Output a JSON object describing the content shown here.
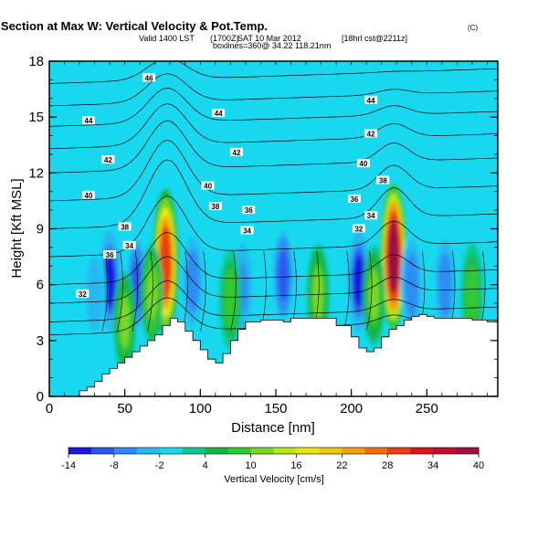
{
  "header": {
    "title": "Wind-Parallel Section at Max W: Vertical Velocity & Pot.Temp.",
    "copyright": "(C)",
    "valid_main": "Valid 1400 LST",
    "valid_utc": "(1700Z)",
    "valid_date": "SAT 10 Mar 2012",
    "model": "[18hrl cst@2211z]",
    "location": "boxlines=360@ 34.22 118.21nm"
  },
  "chart_data": {
    "type": "heatmap",
    "title": "Wind-Parallel Section at Max W: Vertical Velocity & Pot.Temp.",
    "xlabel": "Distance [nm]",
    "ylabel": "Height [Kft MSL]",
    "xlim": [
      0,
      297
    ],
    "ylim": [
      0,
      18
    ],
    "x_ticks": [
      "0",
      "50",
      "100",
      "150",
      "200",
      "250"
    ],
    "y_ticks": [
      "0",
      "3",
      "6",
      "9",
      "12",
      "15",
      "18"
    ],
    "colorbar": {
      "label": "Vertical Velocity [cm/s]",
      "tick_labels": [
        "-14",
        "-8",
        "-2",
        "4",
        "10",
        "16",
        "22",
        "28",
        "34",
        "40"
      ],
      "levels": [
        -14,
        -11,
        -8,
        -5,
        -2,
        1,
        4,
        7,
        10,
        13,
        16,
        19,
        22,
        25,
        28,
        31,
        34,
        37,
        40
      ],
      "colors": [
        "#1818e0",
        "#2a58ee",
        "#2e8cf2",
        "#25b8f2",
        "#18d8f0",
        "#10c88c",
        "#18b43c",
        "#32c832",
        "#78d828",
        "#b8e818",
        "#e8e810",
        "#f0c810",
        "#f4a010",
        "#f07010",
        "#e84010",
        "#d81818",
        "#c01030",
        "#a01040"
      ]
    },
    "terrain": {
      "x": [
        0,
        15,
        20,
        25,
        30,
        35,
        40,
        45,
        50,
        55,
        60,
        65,
        70,
        75,
        80,
        85,
        90,
        95,
        100,
        105,
        110,
        115,
        120,
        125,
        130,
        140,
        150,
        155,
        160,
        165,
        170,
        180,
        190,
        200,
        205,
        210,
        215,
        220,
        225,
        230,
        235,
        240,
        245,
        250,
        255,
        260,
        270,
        280,
        290,
        297
      ],
      "y": [
        0,
        0,
        0.3,
        0.5,
        0.8,
        1.2,
        1.5,
        1.8,
        2.1,
        2.4,
        2.7,
        3.0,
        3.3,
        3.8,
        4.2,
        4.0,
        3.5,
        3.0,
        2.5,
        2.0,
        1.8,
        2.3,
        3.0,
        3.6,
        4.0,
        4.1,
        4.1,
        4.0,
        4.2,
        4.2,
        4.2,
        4.2,
        3.8,
        3.2,
        2.6,
        2.4,
        2.6,
        3.2,
        3.6,
        3.8,
        4.1,
        4.3,
        4.4,
        4.3,
        4.2,
        4.2,
        4.2,
        4.1,
        4.0,
        4.0
      ]
    },
    "vertical_velocity_features": [
      {
        "x": 77,
        "z": 7.2,
        "peak": 28
      },
      {
        "x": 228,
        "z": 7.5,
        "peak": 38
      },
      {
        "x": 40,
        "z": 6.2,
        "peak": -12
      },
      {
        "x": 58,
        "z": 6.0,
        "peak": -10
      },
      {
        "x": 95,
        "z": 6.2,
        "peak": -8
      },
      {
        "x": 205,
        "z": 6.2,
        "peak": -12
      },
      {
        "x": 155,
        "z": 6.5,
        "peak": -10
      },
      {
        "x": 240,
        "z": 6.0,
        "peak": -8
      },
      {
        "x": 262,
        "z": 6.0,
        "peak": -7
      },
      {
        "x": 128,
        "z": 5.8,
        "peak": -6
      },
      {
        "x": 30,
        "z": 5.5,
        "peak": -5
      },
      {
        "x": 68,
        "z": 5.5,
        "peak": 12
      },
      {
        "x": 120,
        "z": 5.2,
        "peak": 9
      },
      {
        "x": 178,
        "z": 5.5,
        "peak": 10
      },
      {
        "x": 215,
        "z": 5.4,
        "peak": 10
      },
      {
        "x": 280,
        "z": 5.5,
        "peak": 9
      },
      {
        "x": 50,
        "z": 4.0,
        "peak": 10
      }
    ],
    "isentropes": {
      "levels": [
        32,
        34,
        36,
        38,
        40,
        42,
        44,
        46
      ],
      "labels": [
        {
          "text": "46",
          "x": 66,
          "z": 17.1
        },
        {
          "text": "44",
          "x": 26,
          "z": 14.8
        },
        {
          "text": "44",
          "x": 112,
          "z": 15.2
        },
        {
          "text": "44",
          "x": 213,
          "z": 15.9
        },
        {
          "text": "42",
          "x": 39,
          "z": 12.7
        },
        {
          "text": "42",
          "x": 124,
          "z": 13.1
        },
        {
          "text": "42",
          "x": 213,
          "z": 14.1
        },
        {
          "text": "40",
          "x": 26,
          "z": 10.8
        },
        {
          "text": "40",
          "x": 105,
          "z": 11.3
        },
        {
          "text": "40",
          "x": 208,
          "z": 12.5
        },
        {
          "text": "38",
          "x": 221,
          "z": 11.6
        },
        {
          "text": "38",
          "x": 50,
          "z": 9.1
        },
        {
          "text": "38",
          "x": 110,
          "z": 10.2
        },
        {
          "text": "36",
          "x": 202,
          "z": 10.6
        },
        {
          "text": "36",
          "x": 132,
          "z": 10.0
        },
        {
          "text": "36",
          "x": 40,
          "z": 7.6
        },
        {
          "text": "34",
          "x": 53,
          "z": 8.1
        },
        {
          "text": "34",
          "x": 213,
          "z": 9.7
        },
        {
          "text": "34",
          "x": 131,
          "z": 8.9
        },
        {
          "text": "32",
          "x": 205,
          "z": 9.0
        },
        {
          "text": "32",
          "x": 22,
          "z": 5.5
        }
      ]
    },
    "grid": false
  }
}
